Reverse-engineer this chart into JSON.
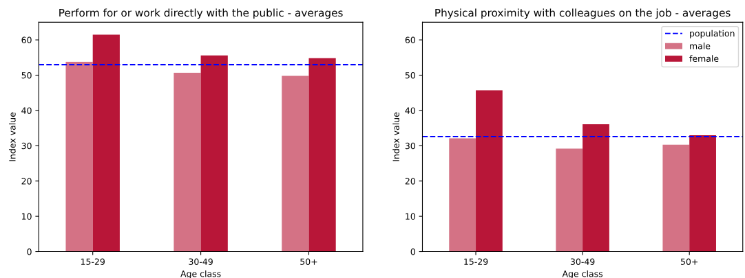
{
  "chart_data": [
    {
      "type": "bar",
      "title": "Perform for or work directly with the public - averages",
      "xlabel": "Age class",
      "ylabel": "Index value",
      "categories": [
        "15-29",
        "30-49",
        "50+"
      ],
      "series": [
        {
          "color": "#d47285",
          "values": [
            53.8,
            50.7,
            49.8
          ]
        },
        {
          "color": "#b81638",
          "values": [
            61.5,
            55.6,
            54.8
          ]
        }
      ],
      "ylim": [
        0,
        65
      ],
      "yticks": [
        0,
        10,
        20,
        30,
        40,
        50,
        60
      ],
      "grid": false,
      "legend": false,
      "ref_lines": [
        {
          "axis": "y",
          "value": 53.0,
          "color": "#0000ff",
          "line_style": "dashed"
        }
      ]
    },
    {
      "type": "bar",
      "title": "Physical proximity with colleagues on the job - averages",
      "xlabel": "Age class",
      "ylabel": "Index value",
      "categories": [
        "15-29",
        "30-49",
        "50+"
      ],
      "series": [
        {
          "name": "male",
          "color": "#d47285",
          "values": [
            32.1,
            29.2,
            30.3
          ]
        },
        {
          "name": "female",
          "color": "#b81638",
          "values": [
            45.7,
            36.1,
            33.0
          ]
        }
      ],
      "ylim": [
        0,
        65
      ],
      "yticks": [
        0,
        10,
        20,
        30,
        40,
        50,
        60
      ],
      "grid": false,
      "legend": "top right",
      "ref_lines": [
        {
          "axis": "y",
          "value": 32.6,
          "label": "population",
          "color": "#0000ff",
          "line_style": "dashed"
        }
      ]
    }
  ]
}
